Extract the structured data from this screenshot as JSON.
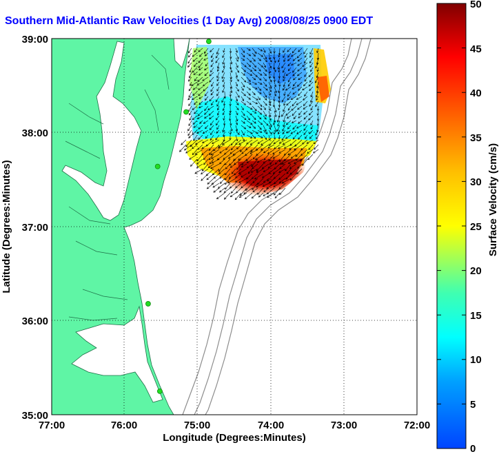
{
  "title": "Southern Mid-Atlantic Raw Velocities (1 Day Avg) 2008/08/25 0900 EDT",
  "map": {
    "xlabel": "Longitude (Degrees:Minutes)",
    "ylabel": "Latitude (Degrees:Minutes)",
    "lon_ticks": [
      "77:00",
      "76:00",
      "75:00",
      "74:00",
      "73:00",
      "72:00"
    ],
    "lat_ticks": [
      "39:00",
      "38:00",
      "37:00",
      "36:00",
      "35:00"
    ],
    "lon_range": [
      -77,
      -72
    ],
    "lat_range": [
      35,
      39
    ],
    "grid": "dotted",
    "colors": {
      "land": "#5ff5a5",
      "coastline": "#1e6e46",
      "bathymetry": "#8c8c8c",
      "station": "#22dd22"
    },
    "radar_stations": [
      {
        "lon": -74.85,
        "lat": 38.97
      },
      {
        "lon": -75.16,
        "lat": 38.22
      },
      {
        "lon": -75.55,
        "lat": 37.64
      },
      {
        "lon": -75.68,
        "lat": 36.18
      },
      {
        "lon": -75.52,
        "lat": 35.25
      }
    ]
  },
  "colorbar": {
    "label": "Surface Velocity (cm/s)",
    "min": 0,
    "max": 50,
    "ticks": [
      "0",
      "5",
      "10",
      "15",
      "20",
      "25",
      "30",
      "35",
      "40",
      "45",
      "50"
    ],
    "colormap": "jet"
  }
}
